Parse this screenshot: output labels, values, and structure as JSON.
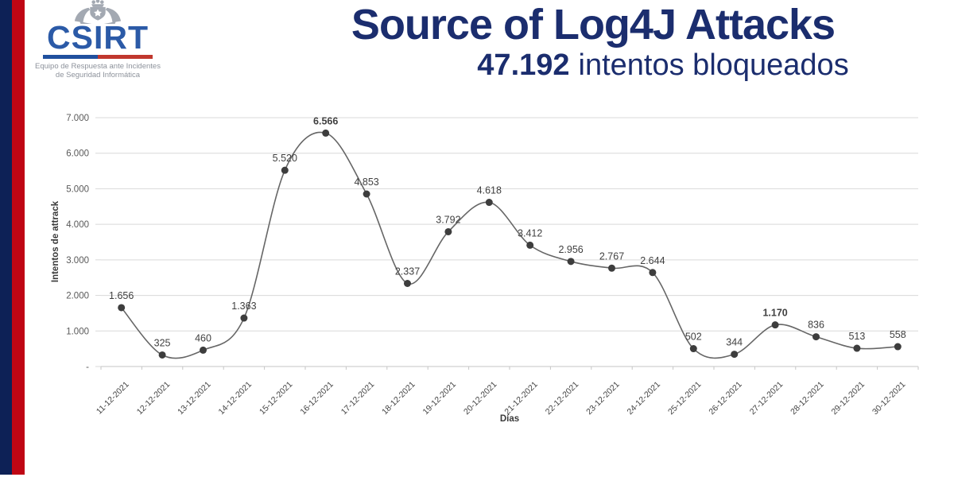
{
  "brand": {
    "logo_text": "CSIRT",
    "tagline_line1": "Equipo de Respuesta ante Incidentes",
    "tagline_line2": "de Seguridad Informática",
    "colors": {
      "logo_blue": "#2b5aa7",
      "bar_blue": "#20509e",
      "bar_red": "#c0372e",
      "stripe_navy": "#0d2156",
      "stripe_red": "#bf0614"
    }
  },
  "header": {
    "title": "Source of Log4J Attacks",
    "subtitle_value": "47.192",
    "subtitle_text": "intentos bloqueados",
    "title_color": "#1b2d6e"
  },
  "chart_data": {
    "type": "line",
    "smooth": true,
    "title": "Source of Log4J Attacks",
    "subtitle": "47.192 intentos bloqueados",
    "xlabel": "Días",
    "ylabel": "Intentos de attrack",
    "categories": [
      "11-12-2021",
      "12-12-2021",
      "13-12-2021",
      "14-12-2021",
      "15-12-2021",
      "16-12-2021",
      "17-12-2021",
      "18-12-2021",
      "19-12-2021",
      "20-12-2021",
      "21-12-2021",
      "22-12-2021",
      "23-12-2021",
      "24-12-2021",
      "25-12-2021",
      "26-12-2021",
      "27-12-2021",
      "28-12-2021",
      "29-12-2021",
      "30-12-2021"
    ],
    "values": [
      1656,
      325,
      460,
      1363,
      5520,
      6566,
      4853,
      2337,
      3792,
      4618,
      3412,
      2956,
      2767,
      2644,
      502,
      344,
      1170,
      836,
      513,
      558
    ],
    "point_labels": [
      "1.656",
      "325",
      "460",
      "1.363",
      "5.520",
      "6.566",
      "4.853",
      "2.337",
      "3.792",
      "4.618",
      "3.412",
      "2.956",
      "2.767",
      "2.644",
      "502",
      "344",
      "1.170",
      "836",
      "513",
      "558"
    ],
    "label_bold": [
      false,
      false,
      false,
      false,
      false,
      true,
      false,
      false,
      false,
      false,
      false,
      false,
      false,
      false,
      false,
      false,
      true,
      false,
      false,
      false
    ],
    "total_label": "47.192",
    "ylim": [
      0,
      7000
    ],
    "ytick_interval": 1000,
    "ytick_labels": [
      "-",
      "1.000",
      "2.000",
      "3.000",
      "4.000",
      "5.000",
      "6.000",
      "7.000"
    ],
    "grid": true,
    "legend": false,
    "colors": {
      "line": "#666666",
      "marker": "#3d3d3d",
      "point_label": "#404040",
      "tick_label": "#595959",
      "axis_title": "#3a3a3a",
      "gridline": "#d9d9d9",
      "axis_line": "#c6c6c6"
    }
  }
}
